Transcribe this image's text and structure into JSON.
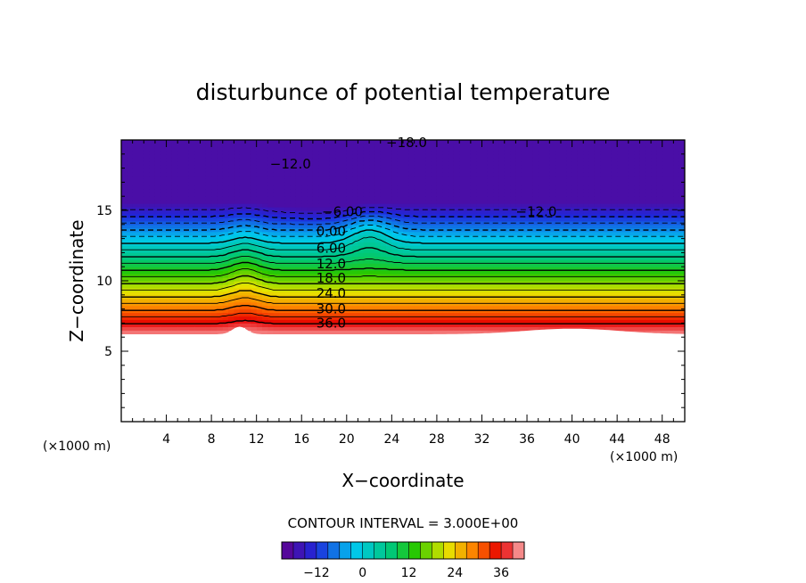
{
  "chart_data": {
    "type": "contour",
    "title": "disturbunce of potential temperature",
    "xlabel": "X−coordinate",
    "ylabel": "Z−coordinate",
    "x_unit": "(×1000 m)",
    "y_unit": "(×1000 m)",
    "xlim": [
      0,
      50
    ],
    "ylim": [
      0,
      20
    ],
    "x_ticks": [
      4,
      8,
      12,
      16,
      20,
      24,
      28,
      32,
      36,
      40,
      44,
      48
    ],
    "y_ticks": [
      5,
      10,
      15
    ],
    "contour_interval_text": "CONTOUR INTERVAL = 3.000E+00",
    "contour_levels_labeled": [
      {
        "text": "−18.0",
        "x": 23.5,
        "z": 19.8
      },
      {
        "text": "−12.0",
        "x": 13.2,
        "z": 18.3
      },
      {
        "text": "−12.0",
        "x": 35.0,
        "z": 14.9
      },
      {
        "text": "−6.00",
        "x": 17.8,
        "z": 14.9
      },
      {
        "text": "0.00",
        "x": 17.3,
        "z": 13.5
      },
      {
        "text": "6.00",
        "x": 17.3,
        "z": 12.3
      },
      {
        "text": "12.0",
        "x": 17.3,
        "z": 11.2
      },
      {
        "text": "18.0",
        "x": 17.3,
        "z": 10.2
      },
      {
        "text": "24.0",
        "x": 17.3,
        "z": 9.1
      },
      {
        "text": "30.0",
        "x": 17.3,
        "z": 8.0
      },
      {
        "text": "36.0",
        "x": 17.3,
        "z": 7.0
      }
    ],
    "value_range": [
      -18,
      39
    ],
    "terrain": "ground surface near z = 6 with bump near x = 10",
    "colorbar": {
      "ticks": [
        "−12",
        "0",
        "12",
        "24",
        "36"
      ],
      "tick_values": [
        -12,
        0,
        12,
        24,
        36
      ],
      "min": -21,
      "max": 42,
      "colormap": "rainbow (purple-blue-cyan-green-yellow-red-pink)"
    },
    "legend": "colorbar bottom-center",
    "grid": false
  }
}
